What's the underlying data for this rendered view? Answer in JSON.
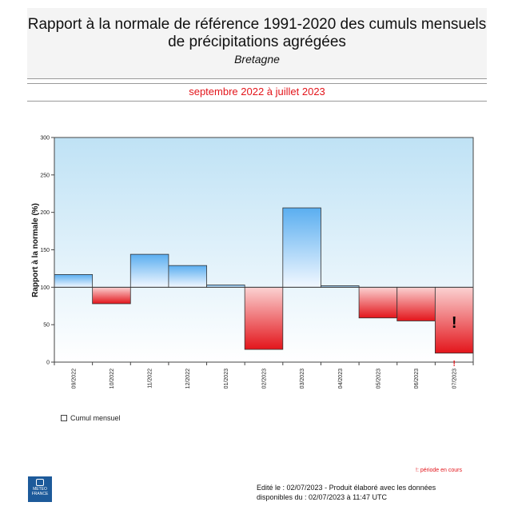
{
  "header": {
    "title": "Rapport à la normale de référence 1991-2020 des cumuls mensuels de précipitations agrégées",
    "subtitle": "Bretagne",
    "period": "septembre 2022 à juillet 2023"
  },
  "colors": {
    "above_normal": "#5aaef0",
    "below_normal": "#e3151b",
    "period_text": "#e3151b"
  },
  "chart_data": {
    "type": "bar",
    "ylabel": "Rapport à la normale (%)",
    "baseline": 100,
    "ylim": [
      0,
      300
    ],
    "yticks": [
      0,
      50,
      100,
      150,
      200,
      250,
      300
    ],
    "categories": [
      "09/2022",
      "10/2022",
      "11/2022",
      "12/2022",
      "01/2023",
      "02/2023",
      "03/2023",
      "04/2023",
      "05/2023",
      "06/2023",
      "07/2023"
    ],
    "series": [
      {
        "name": "Cumul mensuel",
        "values": [
          117,
          78,
          144,
          129,
          103,
          17,
          206,
          102,
          59,
          55,
          12
        ]
      }
    ],
    "in_progress_marker": {
      "category": "07/2023",
      "symbol": "!"
    },
    "legend": {
      "label": "Cumul mensuel",
      "placement": "bottom-left"
    },
    "grid": false
  },
  "notes": {
    "in_progress": "!: période en cours"
  },
  "logo": {
    "line1": "METEO",
    "line2": "FRANCE"
  },
  "footer": {
    "text": "Edité le : 02/07/2023 - Produit élaboré avec les données\ndisponibles du : 02/07/2023 à 11:47 UTC"
  }
}
